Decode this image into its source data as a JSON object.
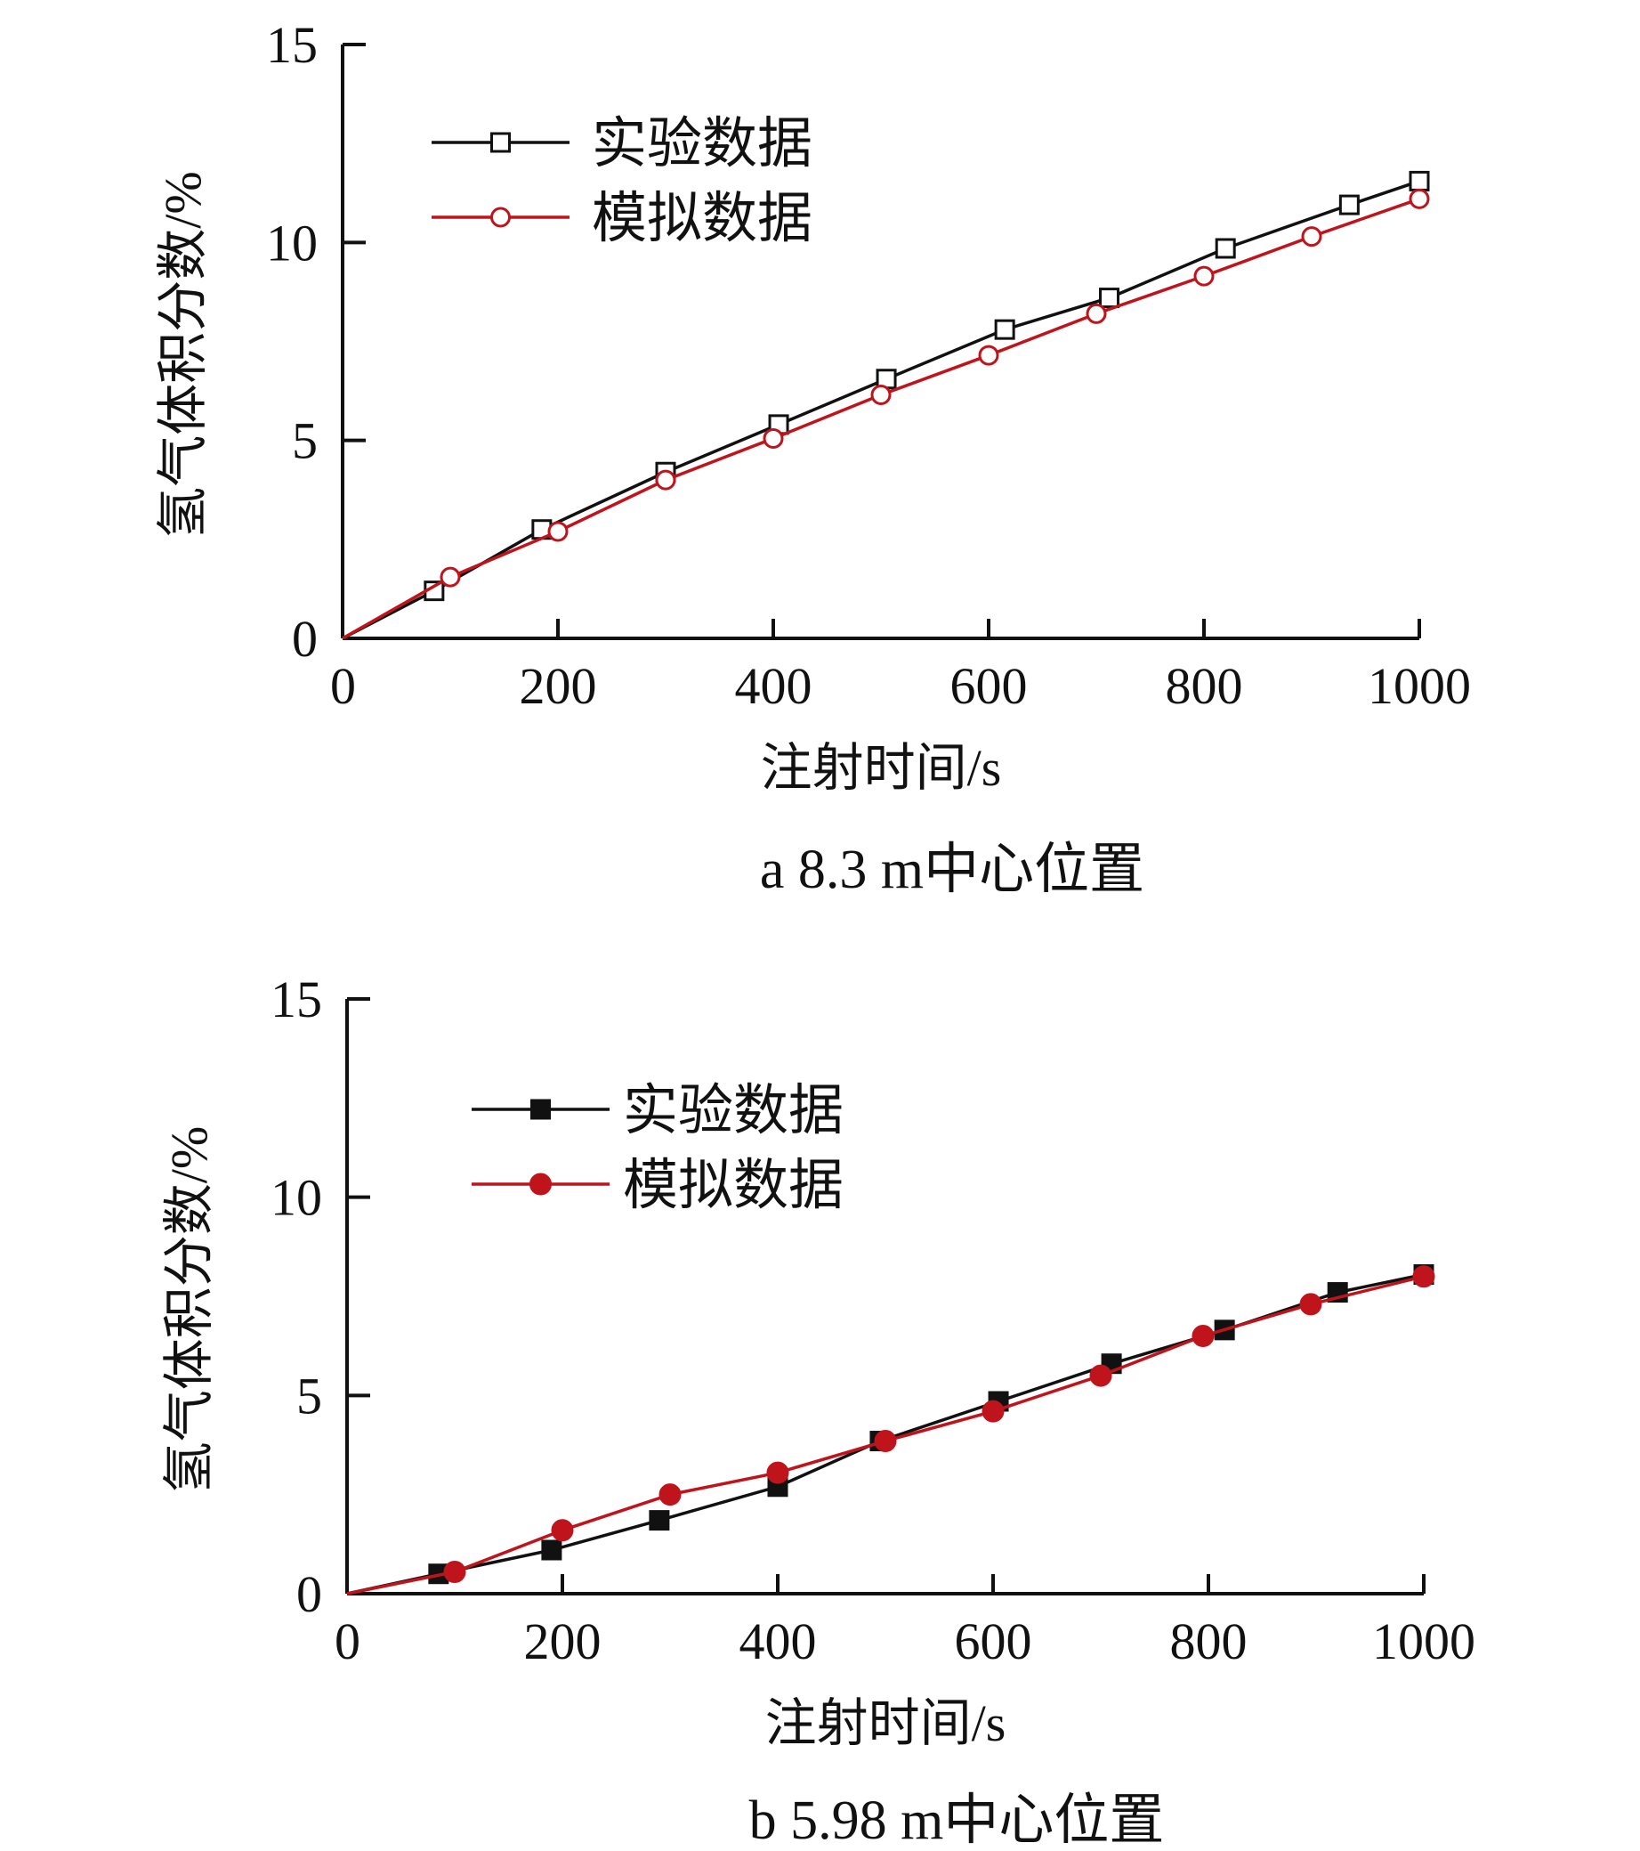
{
  "colors": {
    "axis": "#111111",
    "experimental": "#111111",
    "simulated": "#c0141c"
  },
  "chart_data": [
    {
      "type": "line",
      "caption": "a  8.3 m中心位置",
      "xlabel": "注射时间/s",
      "ylabel": "氢气体积分数/%",
      "xlim": [
        0,
        1000
      ],
      "ylim": [
        0,
        15
      ],
      "xticks": [
        0,
        200,
        400,
        600,
        800,
        1000
      ],
      "yticks": [
        0,
        5,
        10,
        15
      ],
      "xtick_labels": [
        "0",
        "200",
        "400",
        "600",
        "800",
        "1000"
      ],
      "ytick_labels": [
        "0",
        "5",
        "10",
        "15"
      ],
      "grid": false,
      "legend_position": "top-left",
      "marker_style": "hollow",
      "series": [
        {
          "name": "实验数据",
          "marker": "square",
          "color": "#111111",
          "x": [
            0,
            85,
            185,
            300,
            405,
            505,
            615,
            712,
            820,
            935,
            1000
          ],
          "y": [
            0,
            1.2,
            2.75,
            4.2,
            5.4,
            6.55,
            7.8,
            8.6,
            9.85,
            10.95,
            11.55
          ]
        },
        {
          "name": "模拟数据",
          "marker": "circle",
          "color": "#c0141c",
          "x": [
            0,
            100,
            200,
            300,
            400,
            500,
            600,
            700,
            800,
            900,
            1000
          ],
          "y": [
            0,
            1.55,
            2.7,
            4.0,
            5.05,
            6.15,
            7.15,
            8.2,
            9.15,
            10.15,
            11.1
          ]
        }
      ]
    },
    {
      "type": "line",
      "caption": "b  5.98 m中心位置",
      "xlabel": "注射时间/s",
      "ylabel": "氢气体积分数/%",
      "xlim": [
        0,
        1000
      ],
      "ylim": [
        0,
        15
      ],
      "xticks": [
        0,
        200,
        400,
        600,
        800,
        1000
      ],
      "yticks": [
        0,
        5,
        10,
        15
      ],
      "xtick_labels": [
        "0",
        "200",
        "400",
        "600",
        "800",
        "1000"
      ],
      "ytick_labels": [
        "0",
        "5",
        "10",
        "15"
      ],
      "grid": false,
      "legend_position": "top-left",
      "marker_style": "filled",
      "series": [
        {
          "name": "实验数据",
          "marker": "square",
          "color": "#111111",
          "x": [
            0,
            85,
            190,
            290,
            400,
            495,
            605,
            710,
            815,
            920,
            1000
          ],
          "y": [
            0,
            0.5,
            1.1,
            1.85,
            2.7,
            3.85,
            4.85,
            5.8,
            6.65,
            7.6,
            8.05
          ]
        },
        {
          "name": "模拟数据",
          "marker": "circle",
          "color": "#c0141c",
          "x": [
            0,
            100,
            200,
            300,
            400,
            500,
            600,
            700,
            795,
            895,
            1000
          ],
          "y": [
            0,
            0.55,
            1.6,
            2.5,
            3.05,
            3.85,
            4.6,
            5.5,
            6.5,
            7.3,
            8.0
          ]
        }
      ]
    }
  ]
}
